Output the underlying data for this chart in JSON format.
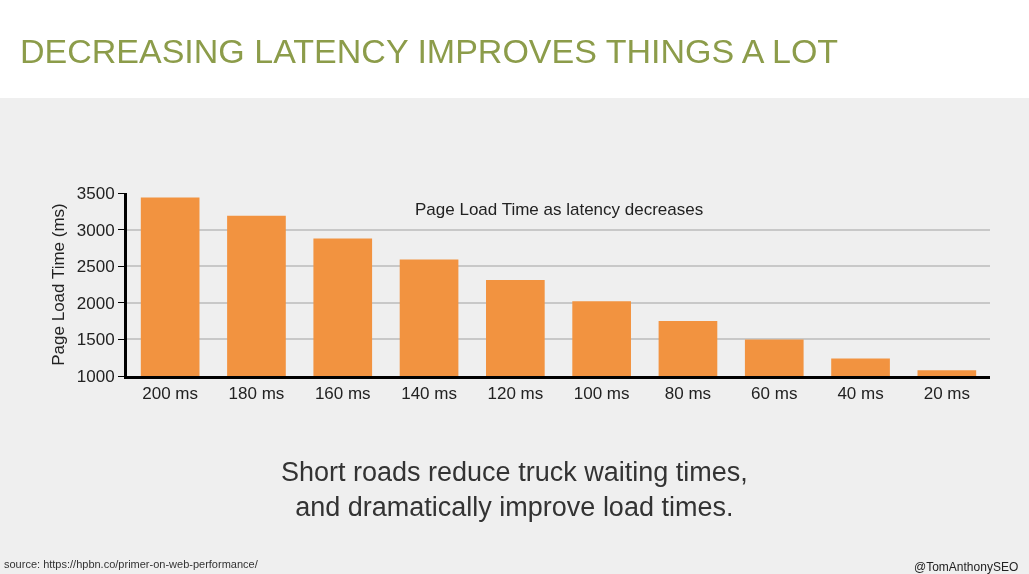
{
  "chart_data": {
    "type": "bar",
    "title": "DECREASING LATENCY IMPROVES THINGS A LOT",
    "subtitle": "Page Load Time as latency decreases",
    "ylabel": "Page Load Time (ms)",
    "categories": [
      "200 ms",
      "180 ms",
      "160 ms",
      "140 ms",
      "120 ms",
      "100 ms",
      "80 ms",
      "60 ms",
      "40 ms",
      "20 ms"
    ],
    "values": [
      3440,
      3190,
      2880,
      2590,
      2310,
      2020,
      1750,
      1500,
      1240,
      1080
    ],
    "color": "#f29340",
    "ylim": [
      1000,
      3500
    ],
    "yticks": [
      1000,
      1500,
      2000,
      2500,
      3000,
      3500
    ],
    "grid": "y",
    "legend": false,
    "annotations": [
      "Short roads reduce truck waiting times,\nand dramatically improve load times.",
      "source: https://hpbn.co/primer-on-web-performance/",
      "@TomAnthonySEO"
    ]
  }
}
